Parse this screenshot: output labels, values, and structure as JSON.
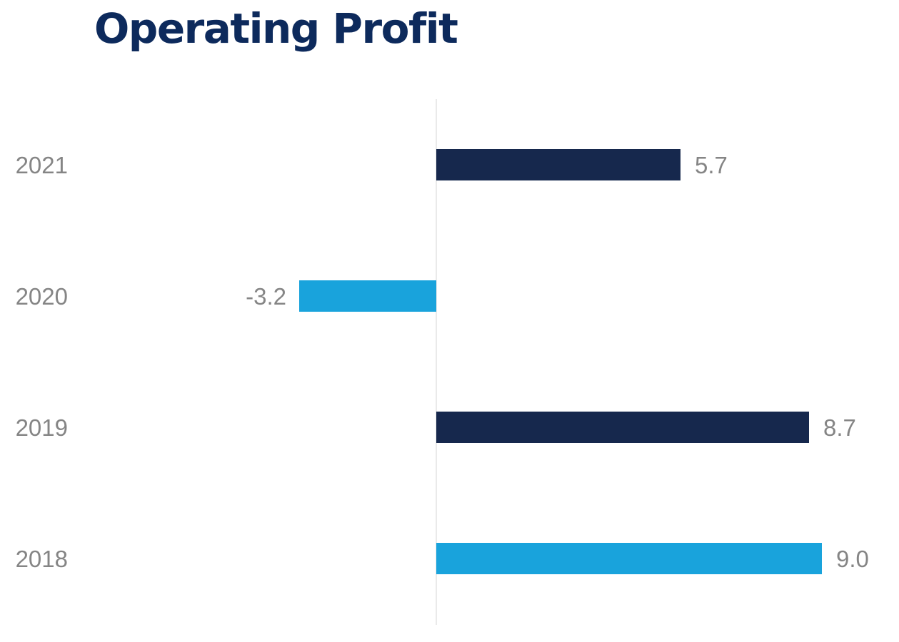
{
  "chart_data": {
    "type": "bar",
    "orientation": "horizontal",
    "title": "Operating Profit",
    "xlabel": "",
    "ylabel": "",
    "categories": [
      "2021",
      "2020",
      "2019",
      "2018"
    ],
    "values": [
      5.7,
      -3.2,
      8.7,
      9.0
    ],
    "value_labels": [
      "5.7",
      "-3.2",
      "8.7",
      "9.0"
    ],
    "colors": [
      "#16284d",
      "#19a3dc",
      "#16284d",
      "#19a3dc"
    ],
    "grid": false,
    "legend": "none"
  },
  "colors": {
    "title": "#0d2a5c",
    "labels": "#858585",
    "zero_line": "#dddddd"
  }
}
